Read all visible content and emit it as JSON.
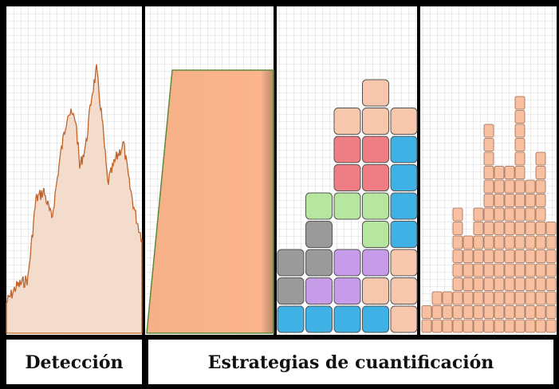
{
  "labels": {
    "detection": "Detección",
    "quantification": "Estrategias de cuantificación"
  }
}
